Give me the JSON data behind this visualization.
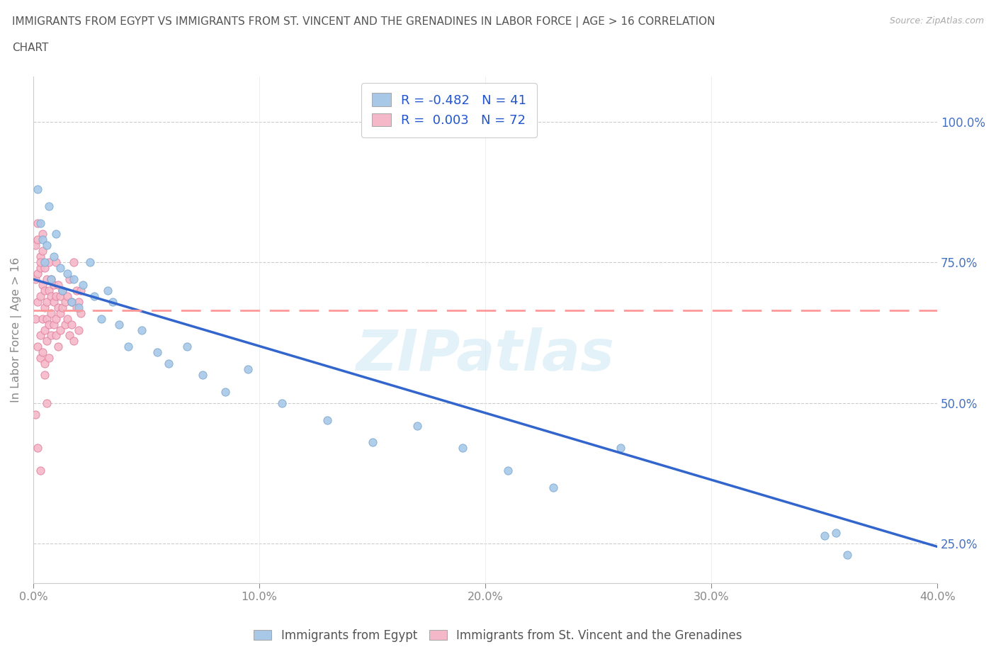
{
  "title_line1": "IMMIGRANTS FROM EGYPT VS IMMIGRANTS FROM ST. VINCENT AND THE GRENADINES IN LABOR FORCE | AGE > 16 CORRELATION",
  "title_line2": "CHART",
  "source_text": "Source: ZipAtlas.com",
  "ylabel": "In Labor Force | Age > 16",
  "xlim": [
    0.0,
    0.4
  ],
  "ylim": [
    0.18,
    1.08
  ],
  "xtick_labels": [
    "0.0%",
    "10.0%",
    "20.0%",
    "30.0%",
    "40.0%"
  ],
  "xtick_vals": [
    0.0,
    0.1,
    0.2,
    0.3,
    0.4
  ],
  "ytick_labels": [
    "25.0%",
    "50.0%",
    "75.0%",
    "100.0%"
  ],
  "ytick_vals": [
    0.25,
    0.5,
    0.75,
    1.0
  ],
  "egypt_color": "#a8c8e8",
  "egypt_edge_color": "#7aaad0",
  "svg_color": "#f5b8c8",
  "svg_edge_color": "#e080a0",
  "egypt_R": -0.482,
  "egypt_N": 41,
  "svg_R": 0.003,
  "svg_N": 72,
  "egypt_line_color": "#3366cc",
  "svg_line_color": "#ff9999",
  "watermark": "ZIPatlas",
  "legend_R_color": "#2255cc",
  "egypt_line_y0": 0.72,
  "egypt_line_y1": 0.245,
  "svg_line_y0": 0.665,
  "svg_line_y1": 0.665,
  "egypt_scatter_x": [
    0.002,
    0.003,
    0.004,
    0.005,
    0.006,
    0.007,
    0.008,
    0.009,
    0.01,
    0.012,
    0.013,
    0.015,
    0.017,
    0.018,
    0.02,
    0.022,
    0.025,
    0.027,
    0.03,
    0.033,
    0.035,
    0.038,
    0.042,
    0.048,
    0.055,
    0.06,
    0.068,
    0.075,
    0.085,
    0.095,
    0.11,
    0.13,
    0.15,
    0.17,
    0.19,
    0.21,
    0.23,
    0.26,
    0.35,
    0.355,
    0.36
  ],
  "egypt_scatter_y": [
    0.88,
    0.82,
    0.79,
    0.75,
    0.78,
    0.85,
    0.72,
    0.76,
    0.8,
    0.74,
    0.7,
    0.73,
    0.68,
    0.72,
    0.67,
    0.71,
    0.75,
    0.69,
    0.65,
    0.7,
    0.68,
    0.64,
    0.6,
    0.63,
    0.59,
    0.57,
    0.6,
    0.55,
    0.52,
    0.56,
    0.5,
    0.47,
    0.43,
    0.46,
    0.42,
    0.38,
    0.35,
    0.42,
    0.265,
    0.27,
    0.23
  ],
  "svg_scatter_x": [
    0.001,
    0.001,
    0.001,
    0.002,
    0.002,
    0.002,
    0.002,
    0.003,
    0.003,
    0.003,
    0.003,
    0.003,
    0.004,
    0.004,
    0.004,
    0.004,
    0.005,
    0.005,
    0.005,
    0.005,
    0.005,
    0.006,
    0.006,
    0.006,
    0.006,
    0.007,
    0.007,
    0.007,
    0.007,
    0.008,
    0.008,
    0.008,
    0.008,
    0.009,
    0.009,
    0.009,
    0.01,
    0.01,
    0.01,
    0.01,
    0.011,
    0.011,
    0.011,
    0.012,
    0.012,
    0.012,
    0.013,
    0.013,
    0.014,
    0.014,
    0.015,
    0.015,
    0.016,
    0.016,
    0.017,
    0.017,
    0.018,
    0.018,
    0.019,
    0.019,
    0.02,
    0.02,
    0.021,
    0.021,
    0.002,
    0.003,
    0.004,
    0.005,
    0.006,
    0.002,
    0.003,
    0.001
  ],
  "svg_scatter_y": [
    0.72,
    0.78,
    0.65,
    0.82,
    0.68,
    0.73,
    0.6,
    0.76,
    0.62,
    0.69,
    0.74,
    0.58,
    0.71,
    0.65,
    0.59,
    0.77,
    0.63,
    0.7,
    0.67,
    0.74,
    0.57,
    0.68,
    0.72,
    0.61,
    0.65,
    0.64,
    0.7,
    0.58,
    0.75,
    0.66,
    0.69,
    0.62,
    0.72,
    0.64,
    0.68,
    0.71,
    0.65,
    0.69,
    0.62,
    0.75,
    0.67,
    0.71,
    0.6,
    0.66,
    0.69,
    0.63,
    0.67,
    0.7,
    0.64,
    0.68,
    0.65,
    0.69,
    0.62,
    0.72,
    0.64,
    0.68,
    0.61,
    0.75,
    0.67,
    0.7,
    0.63,
    0.68,
    0.66,
    0.7,
    0.79,
    0.75,
    0.8,
    0.55,
    0.5,
    0.42,
    0.38,
    0.48
  ]
}
